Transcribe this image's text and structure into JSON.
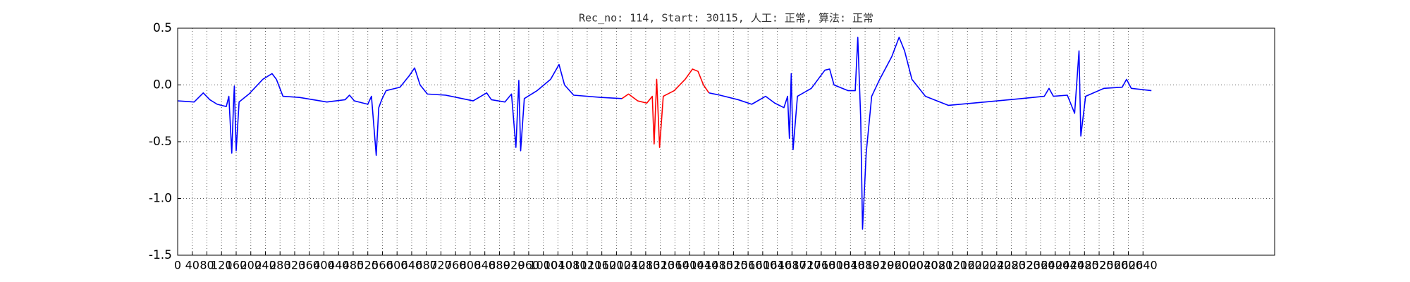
{
  "chart_data": {
    "type": "line",
    "title": "Rec_no: 114, Start: 30115, 人工: 正常, 算法: 正常",
    "xlim": [
      0,
      3000
    ],
    "ylim": [
      -1.5,
      0.5
    ],
    "xticks": [
      0,
      40,
      80,
      120,
      160,
      200,
      240,
      280,
      320,
      360,
      400,
      440,
      480,
      520,
      560,
      600,
      640,
      680,
      720,
      760,
      800,
      840,
      880,
      920,
      960,
      1000,
      1040,
      1080,
      1120,
      1160,
      1200,
      1240,
      1280,
      1320,
      1360,
      1400,
      1440,
      1480,
      1520,
      1560,
      1600,
      1640,
      1680,
      1720,
      1760,
      1800,
      1840,
      1880,
      1920,
      1960,
      2000,
      2040,
      2080,
      2120,
      2160,
      2200,
      2240,
      2280,
      2320,
      2360,
      2400,
      2440,
      2480,
      2520,
      2560,
      2600,
      2640
    ],
    "yticks": [
      -1.5,
      {
        "value": -1.0,
        "label": "-1.0"
      },
      -0.5,
      {
        "value": 0.0,
        "label": "0.0"
      },
      0.5
    ],
    "grid": true,
    "series": [
      {
        "color": "#0000ff",
        "x": [
          0,
          45,
          70,
          88,
          108,
          133,
          140,
          148,
          153,
          155,
          160,
          168,
          195,
          233,
          258,
          270,
          288,
          333,
          408,
          458,
          470,
          483,
          520,
          530,
          543,
          550,
          558,
          570,
          608,
          633,
          648,
          663,
          683,
          733,
          808,
          845,
          858,
          895,
          913,
          925,
          933,
          938,
          948,
          983,
          1020,
          1043,
          1058,
          1083,
          1158,
          1215
        ],
        "values": [
          -0.14,
          -0.15,
          -0.07,
          -0.13,
          -0.17,
          -0.19,
          -0.1,
          -0.6,
          -0.15,
          -0.01,
          -0.58,
          -0.15,
          -0.08,
          0.05,
          0.1,
          0.05,
          -0.1,
          -0.11,
          -0.15,
          -0.13,
          -0.09,
          -0.14,
          -0.17,
          -0.1,
          -0.62,
          -0.2,
          -0.13,
          -0.05,
          -0.02,
          0.08,
          0.15,
          0.0,
          -0.08,
          -0.09,
          -0.14,
          -0.07,
          -0.13,
          -0.15,
          -0.08,
          -0.55,
          0.04,
          -0.58,
          -0.12,
          -0.05,
          0.05,
          0.18,
          0.0,
          -0.09,
          -0.11,
          -0.12
        ]
      },
      {
        "color": "#ff0000",
        "x": [
          1215,
          1233,
          1258,
          1283,
          1298,
          1303,
          1310,
          1318,
          1328,
          1358,
          1388,
          1408,
          1423,
          1438,
          1453
        ],
        "values": [
          -0.12,
          -0.08,
          -0.14,
          -0.16,
          -0.1,
          -0.52,
          0.05,
          -0.55,
          -0.1,
          -0.05,
          0.05,
          0.14,
          0.12,
          0.0,
          -0.07
        ]
      },
      {
        "color": "#0000ff",
        "x": [
          1453,
          1483,
          1533,
          1570,
          1608,
          1633,
          1658,
          1668,
          1673,
          1678,
          1683,
          1695,
          1733,
          1770,
          1783,
          1795,
          1833,
          1853,
          1860,
          1868,
          1873,
          1883,
          1898,
          1920,
          1953,
          1973,
          1988,
          2008,
          2045,
          2108,
          2208,
          2308,
          2370,
          2383,
          2395,
          2433,
          2453,
          2465,
          2470,
          2483,
          2533,
          2583,
          2595,
          2608,
          2663
        ],
        "values": [
          -0.07,
          -0.09,
          -0.13,
          -0.17,
          -0.1,
          -0.16,
          -0.2,
          -0.1,
          -0.47,
          0.1,
          -0.57,
          -0.1,
          -0.03,
          0.13,
          0.14,
          0.0,
          -0.05,
          -0.05,
          0.42,
          -0.3,
          -1.27,
          -0.6,
          -0.1,
          0.05,
          0.25,
          0.42,
          0.3,
          0.05,
          -0.1,
          -0.18,
          -0.15,
          -0.12,
          -0.1,
          -0.03,
          -0.1,
          -0.09,
          -0.25,
          0.3,
          -0.45,
          -0.1,
          -0.03,
          -0.02,
          0.05,
          -0.03,
          -0.05
        ]
      }
    ]
  }
}
